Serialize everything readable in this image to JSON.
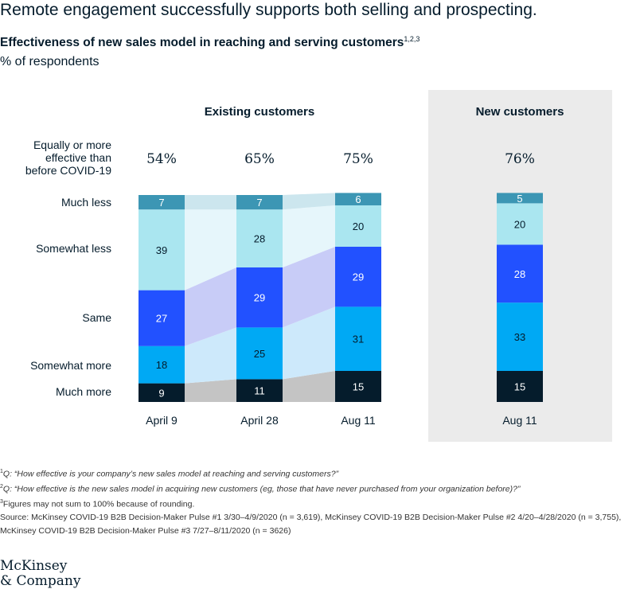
{
  "title": "Remote engagement successfully supports both selling and prospecting.",
  "subtitle": "Effectiveness of new sales model in reaching and serving customers",
  "subtitle_refs": "1,2,3",
  "unit": "% of respondents",
  "chart_data": {
    "type": "bar",
    "stacked": true,
    "groups": [
      {
        "title": "Existing customers",
        "categories": [
          "April 9",
          "April 28",
          "Aug 11"
        ],
        "equal_or_more": [
          "54%",
          "65%",
          "75%"
        ]
      },
      {
        "title": "New customers",
        "categories": [
          "Aug 11"
        ],
        "equal_or_more": [
          "76%"
        ]
      }
    ],
    "equal_or_more_label": [
      "Equally or more",
      "effective than",
      "before COVID-19"
    ],
    "series": [
      {
        "name": "Much more",
        "color": "#051c2c",
        "text_color": "#ffffff",
        "existing": [
          9,
          11,
          15
        ],
        "new": [
          15
        ]
      },
      {
        "name": "Somewhat more",
        "color": "#00a9f4",
        "text_color": "#051c2c",
        "existing": [
          18,
          25,
          31
        ],
        "new": [
          33
        ]
      },
      {
        "name": "Same",
        "color": "#2251ff",
        "text_color": "#ffffff",
        "existing": [
          27,
          29,
          29
        ],
        "new": [
          28
        ]
      },
      {
        "name": "Somewhat less",
        "color": "#aae6f0",
        "text_color": "#051c2c",
        "existing": [
          39,
          28,
          20
        ],
        "new": [
          20
        ]
      },
      {
        "name": "Much less",
        "color": "#3c96b4",
        "text_color": "#ffffff",
        "existing": [
          7,
          7,
          6
        ],
        "new": [
          5
        ]
      }
    ],
    "connector_colors": [
      "#c4c4c4",
      "#cde9fb",
      "#c8ccf7",
      "#e6f6fb",
      "#cce6ee"
    ],
    "ylim": [
      0,
      100
    ]
  },
  "footnotes": [
    {
      "ref": "1",
      "text": "Q: “How effective is your company’s new sales model at reaching and serving customers?”"
    },
    {
      "ref": "2",
      "text": "Q: “How effective is the new sales model in acquiring new customers (eg, those that have never purchased from your organization before)?”"
    },
    {
      "ref": "3",
      "text": "Figures may not sum to 100% because of rounding."
    }
  ],
  "source": "Source: McKinsey COVID-19 B2B Decision-Maker Pulse #1 3/30–4/9/2020 (n =  3,619), McKinsey COVID-19 B2B Decision-Maker Pulse #2 4/20–4/28/2020 (n = 3,755), McKinsey COVID-19 B2B Decision-Maker Pulse #3 7/27–8/11/2020 (n = 3626)",
  "logo": [
    "McKinsey",
    "& Company"
  ]
}
